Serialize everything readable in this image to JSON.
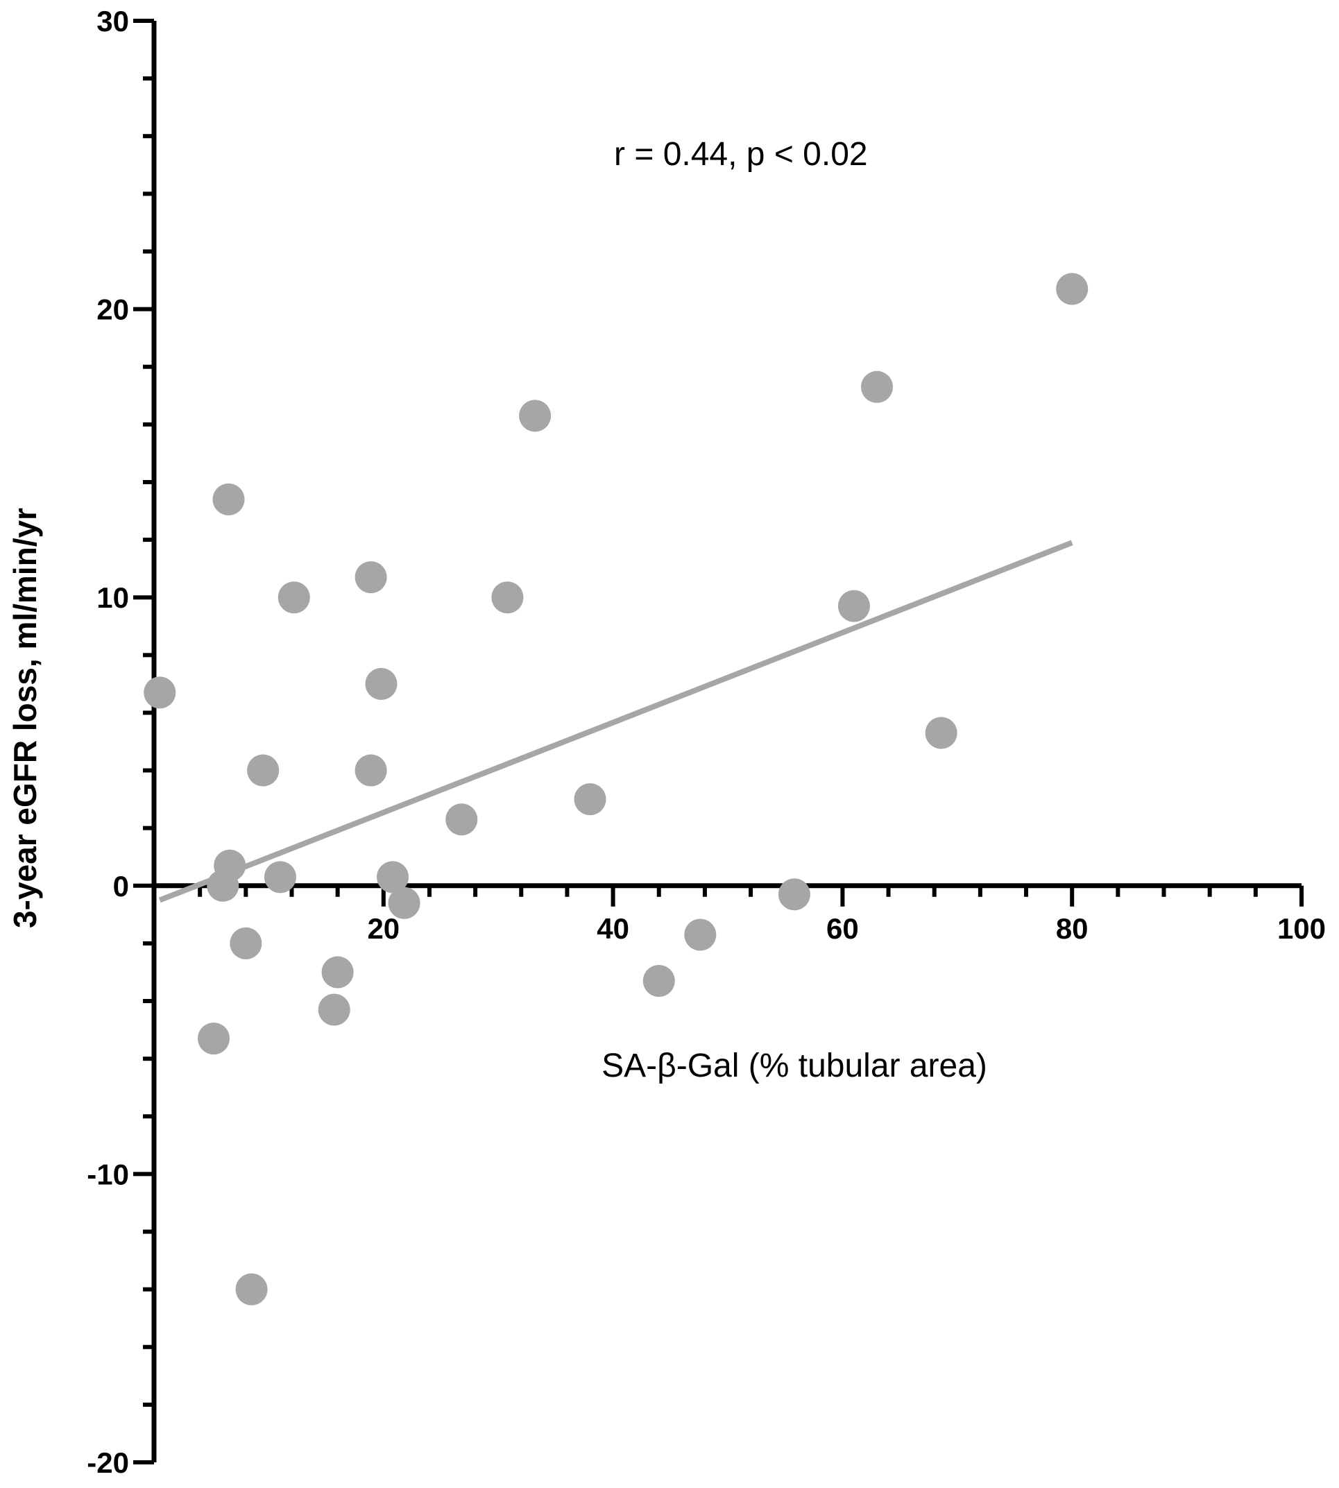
{
  "chart_data": {
    "type": "scatter",
    "title": "",
    "xlabel": "SA-β-Gal  (% tubular area)",
    "ylabel": "3-year eGFR loss, ml/min/yr",
    "xlim": [
      0,
      100
    ],
    "ylim": [
      -20,
      30
    ],
    "x_ticks": [
      20,
      40,
      60,
      80,
      100
    ],
    "y_ticks": [
      30,
      20,
      10,
      0,
      -10,
      -20
    ],
    "x_tick_labels": [
      "20",
      "40",
      "60",
      "80",
      "100"
    ],
    "y_tick_labels": [
      "30",
      "20",
      "10",
      "0",
      "-10",
      "-20"
    ],
    "x_minor_step": 4,
    "y_minor_step": 2,
    "annotation": "r =  0.44, p < 0.02",
    "grid": false,
    "legend": "none",
    "point_color": "#a6a6a6",
    "line_color": "#a6a6a6",
    "points": [
      {
        "x": 0.5,
        "y": 6.7
      },
      {
        "x": 5.2,
        "y": -5.3
      },
      {
        "x": 6.0,
        "y": 0.0
      },
      {
        "x": 6.5,
        "y": 13.4
      },
      {
        "x": 6.6,
        "y": 0.7
      },
      {
        "x": 8.0,
        "y": -2.0
      },
      {
        "x": 8.5,
        "y": -14.0
      },
      {
        "x": 9.5,
        "y": 4.0
      },
      {
        "x": 11.0,
        "y": 0.3
      },
      {
        "x": 12.2,
        "y": 10.0
      },
      {
        "x": 15.7,
        "y": -4.3
      },
      {
        "x": 16.0,
        "y": -3.0
      },
      {
        "x": 18.9,
        "y": 10.7
      },
      {
        "x": 18.9,
        "y": 4.0
      },
      {
        "x": 19.8,
        "y": 7.0
      },
      {
        "x": 20.8,
        "y": 0.3
      },
      {
        "x": 21.8,
        "y": -0.6
      },
      {
        "x": 26.8,
        "y": 2.3
      },
      {
        "x": 30.8,
        "y": 10.0
      },
      {
        "x": 33.2,
        "y": 16.3
      },
      {
        "x": 38.0,
        "y": 3.0
      },
      {
        "x": 44.0,
        "y": -3.3
      },
      {
        "x": 47.6,
        "y": -1.7
      },
      {
        "x": 55.8,
        "y": -0.3
      },
      {
        "x": 61.0,
        "y": 9.7
      },
      {
        "x": 63.0,
        "y": 17.3
      },
      {
        "x": 68.6,
        "y": 5.3
      },
      {
        "x": 80.0,
        "y": 20.7
      }
    ],
    "regression_line": {
      "x": [
        0.5,
        80.0
      ],
      "y": [
        -0.5,
        11.9
      ]
    }
  }
}
